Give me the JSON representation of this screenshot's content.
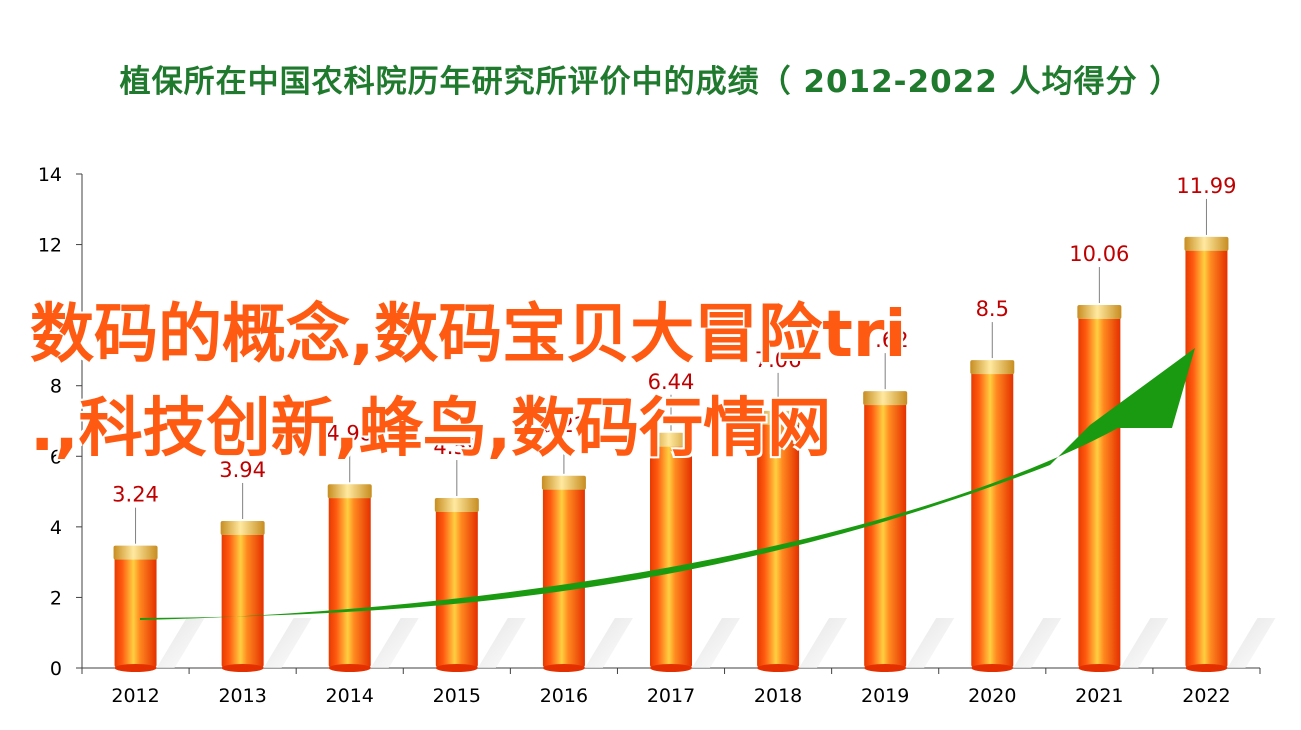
{
  "chart_data": {
    "type": "bar",
    "title": "植保所在中国农科院历年研究所评价中的成绩（ 2012-2022  人均得分 ）",
    "categories": [
      "2012",
      "2013",
      "2014",
      "2015",
      "2016",
      "2017",
      "2018",
      "2019",
      "2020",
      "2021",
      "2022"
    ],
    "values": [
      3.24,
      3.94,
      4.98,
      4.59,
      5.22,
      6.44,
      7.06,
      7.62,
      8.5,
      10.06,
      11.99
    ],
    "value_labels": [
      "3.24",
      "3.94",
      "4.98",
      "4.59",
      "5.22",
      "6.44",
      "7.06",
      "7.62",
      "8.5",
      "10.06",
      "11.99"
    ],
    "ylim": [
      0,
      14
    ],
    "yticks": [
      "0",
      "2",
      "4",
      "6",
      "8",
      "10",
      "12",
      "14"
    ],
    "xlabel": "",
    "ylabel": "",
    "grid": false,
    "legend": "none",
    "colors": {
      "bar": "#ff3b00",
      "bar_highlight": "#ffcc33",
      "bar_cap": "#d9a82a",
      "label": "#c00000",
      "trend_arrow": "#1a9a10",
      "axis": "#404040"
    }
  },
  "overlay": {
    "watermark_line1": "数码的概念,数码宝贝大冒险tri",
    "watermark_line2": ".,科技创新,蜂鸟,数码行情网"
  }
}
